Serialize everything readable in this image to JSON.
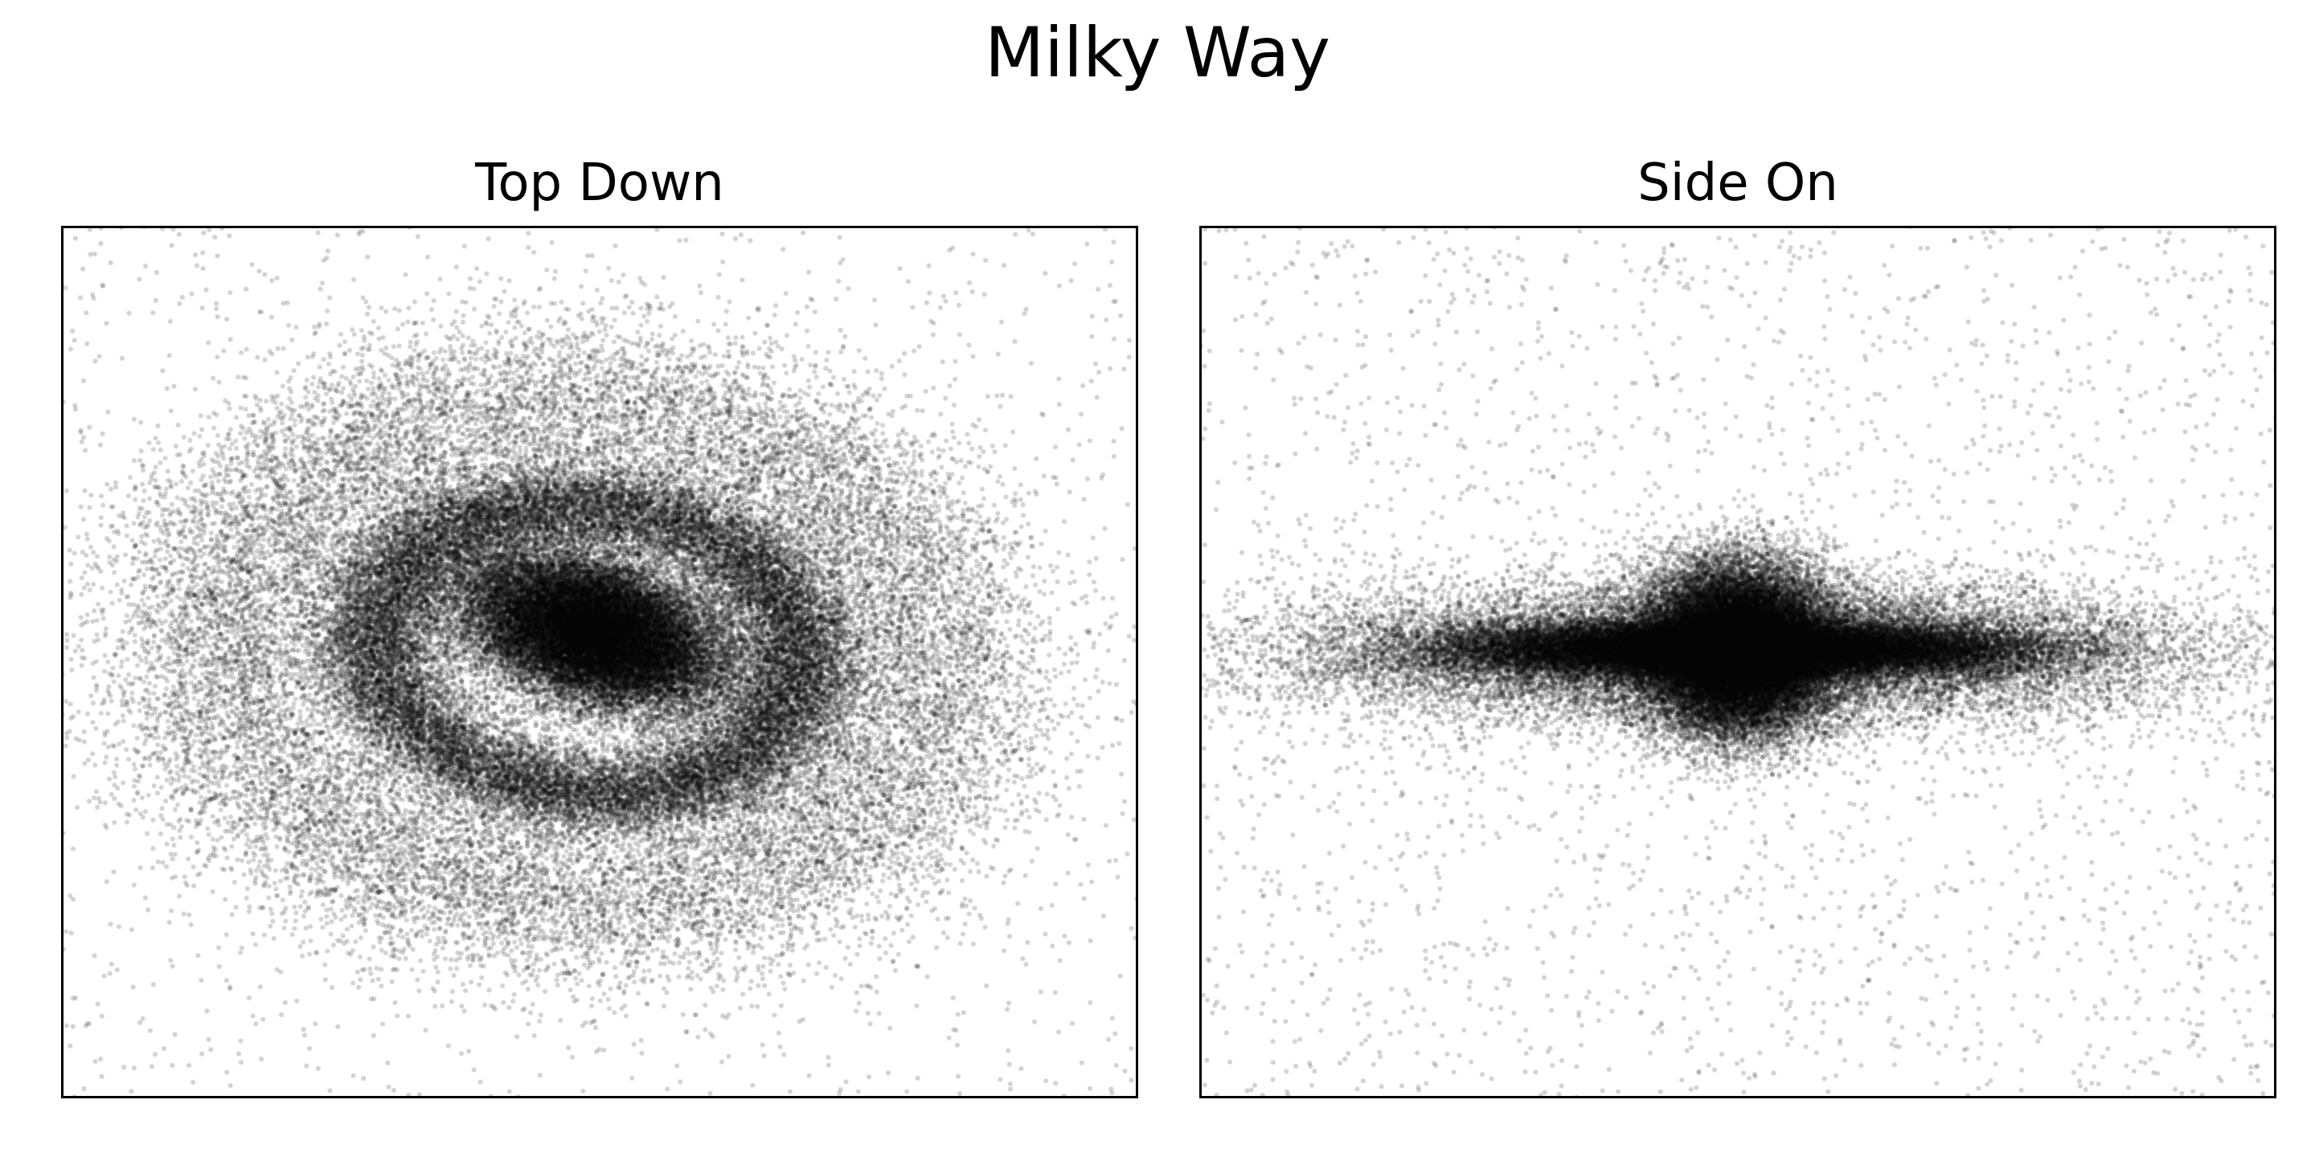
{
  "figure": {
    "suptitle": "Milky Way"
  },
  "chart_data": [
    {
      "type": "scatter",
      "title": "Top Down",
      "xlabel": "",
      "ylabel": "",
      "axes_visible": false,
      "grid": false,
      "marker_color": "#000000",
      "marker_alpha": 0.18,
      "components": [
        {
          "kind": "core",
          "cx": -0.01,
          "cy": 0.07,
          "a": 0.26,
          "b": 0.16,
          "angle_deg": -25,
          "count": 26000
        },
        {
          "kind": "ring",
          "cx": -0.02,
          "cy": 0.03,
          "a": 0.4,
          "b": 0.33,
          "angle_deg": -12,
          "width": 0.06,
          "count": 26000
        },
        {
          "kind": "ring",
          "cx": -0.04,
          "cy": 0.02,
          "a": 0.66,
          "b": 0.57,
          "angle_deg": -8,
          "width": 0.13,
          "count": 20000
        },
        {
          "kind": "halo",
          "cx": 0.0,
          "cy": 0.0,
          "a": 1.35,
          "b": 1.2,
          "count": 4500
        }
      ]
    },
    {
      "type": "scatter",
      "title": "Side On",
      "xlabel": "",
      "ylabel": "",
      "axes_visible": false,
      "grid": false,
      "marker_color": "#000000",
      "marker_alpha": 0.18,
      "components": [
        {
          "kind": "bulge",
          "cx": 0.0,
          "cy": 0.03,
          "a": 0.17,
          "b": 0.19,
          "count": 26000
        },
        {
          "kind": "thin_disk",
          "cx": 0.0,
          "cy": 0.03,
          "a": 0.52,
          "b": 0.06,
          "count": 26000
        },
        {
          "kind": "thick_disk",
          "cx": 0.0,
          "cy": 0.02,
          "a": 0.82,
          "b": 0.16,
          "count": 18000
        },
        {
          "kind": "halo",
          "cx": 0.0,
          "cy": 0.0,
          "a": 1.0,
          "b": 0.75,
          "count": 3500
        }
      ]
    }
  ]
}
